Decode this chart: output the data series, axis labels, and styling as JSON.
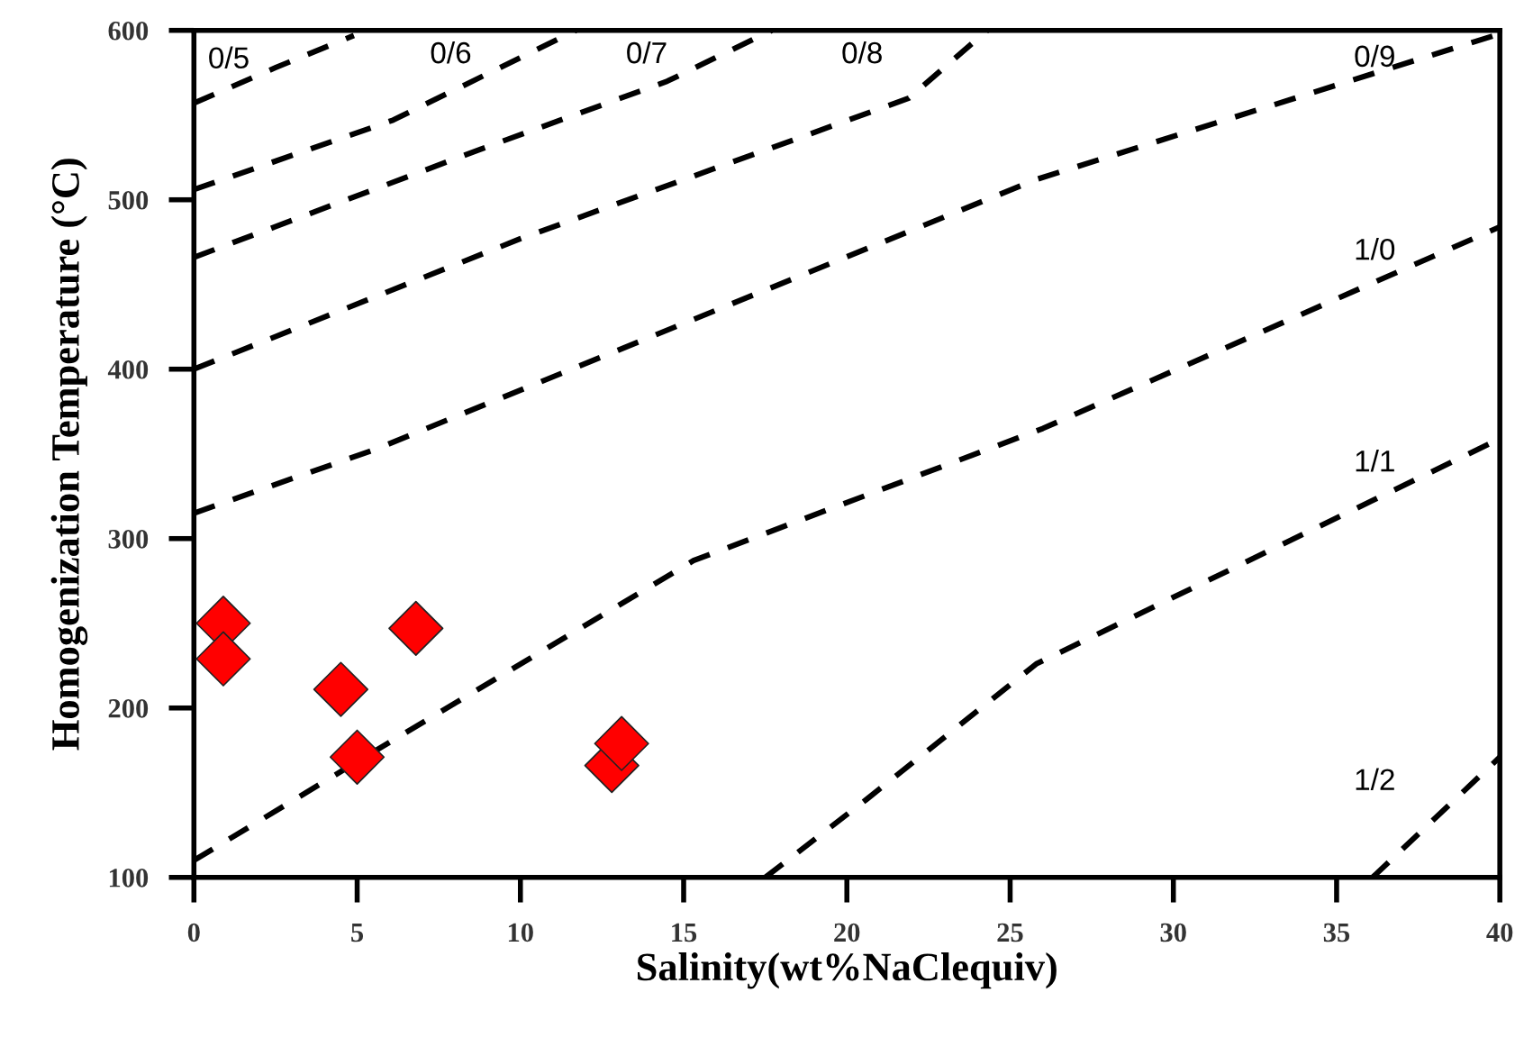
{
  "chart_data": {
    "type": "scatter",
    "xlabel": "Salinity(wt%NaClequiv)",
    "ylabel": "Homogenization Temperature (°C)",
    "xlim": [
      0,
      40
    ],
    "ylim": [
      100,
      600
    ],
    "xticks": [
      0,
      5,
      10,
      15,
      20,
      25,
      30,
      35,
      40
    ],
    "yticks": [
      100,
      200,
      300,
      400,
      500,
      600
    ],
    "grid": false,
    "legend": false,
    "series": [
      {
        "marker": "diamond",
        "color": "#ff0000",
        "x": [
          0.9,
          0.9,
          4.5,
          5.0,
          6.8,
          12.8,
          13.1
        ],
        "values": [
          250,
          229,
          211,
          171,
          247,
          166,
          179
        ]
      },
      {
        "name": "0/5",
        "type": "line",
        "line_style": "dashed",
        "color": "#000000",
        "x": [
          0,
          2.5,
          4.9
        ],
        "values": [
          557,
          578,
          597
        ]
      },
      {
        "name": "0/6",
        "type": "line",
        "line_style": "dashed",
        "color": "#000000",
        "x": [
          0,
          6.1,
          11.7
        ],
        "values": [
          506,
          547,
          600
        ]
      },
      {
        "name": "0/7",
        "type": "line",
        "line_style": "dashed",
        "color": "#000000",
        "x": [
          0,
          8.8,
          14.5,
          17.7
        ],
        "values": [
          466,
          530,
          570,
          600
        ]
      },
      {
        "name": "0/8",
        "type": "line",
        "line_style": "dashed",
        "color": "#000000",
        "x": [
          0,
          10,
          21.9,
          24.3
        ],
        "values": [
          400,
          477,
          560,
          600
        ]
      },
      {
        "name": "0/9",
        "type": "line",
        "line_style": "dashed",
        "color": "#000000",
        "x": [
          0,
          5.6,
          25.8,
          40
        ],
        "values": [
          315,
          353,
          512,
          598
        ]
      },
      {
        "name": "1/0",
        "type": "line",
        "line_style": "dashed",
        "color": "#000000",
        "x": [
          0,
          4.8,
          15.3,
          26,
          40
        ],
        "values": [
          110,
          166,
          287,
          365,
          484
        ]
      },
      {
        "name": "1/1",
        "type": "line",
        "line_style": "dashed",
        "color": "#000000",
        "x": [
          17.5,
          20.6,
          25.8,
          40
        ],
        "values": [
          100,
          146,
          226,
          359
        ]
      },
      {
        "name": "1/2",
        "type": "line",
        "line_style": "dashed",
        "color": "#000000",
        "x": [
          36.1,
          40
        ],
        "values": [
          100,
          171
        ]
      }
    ]
  }
}
